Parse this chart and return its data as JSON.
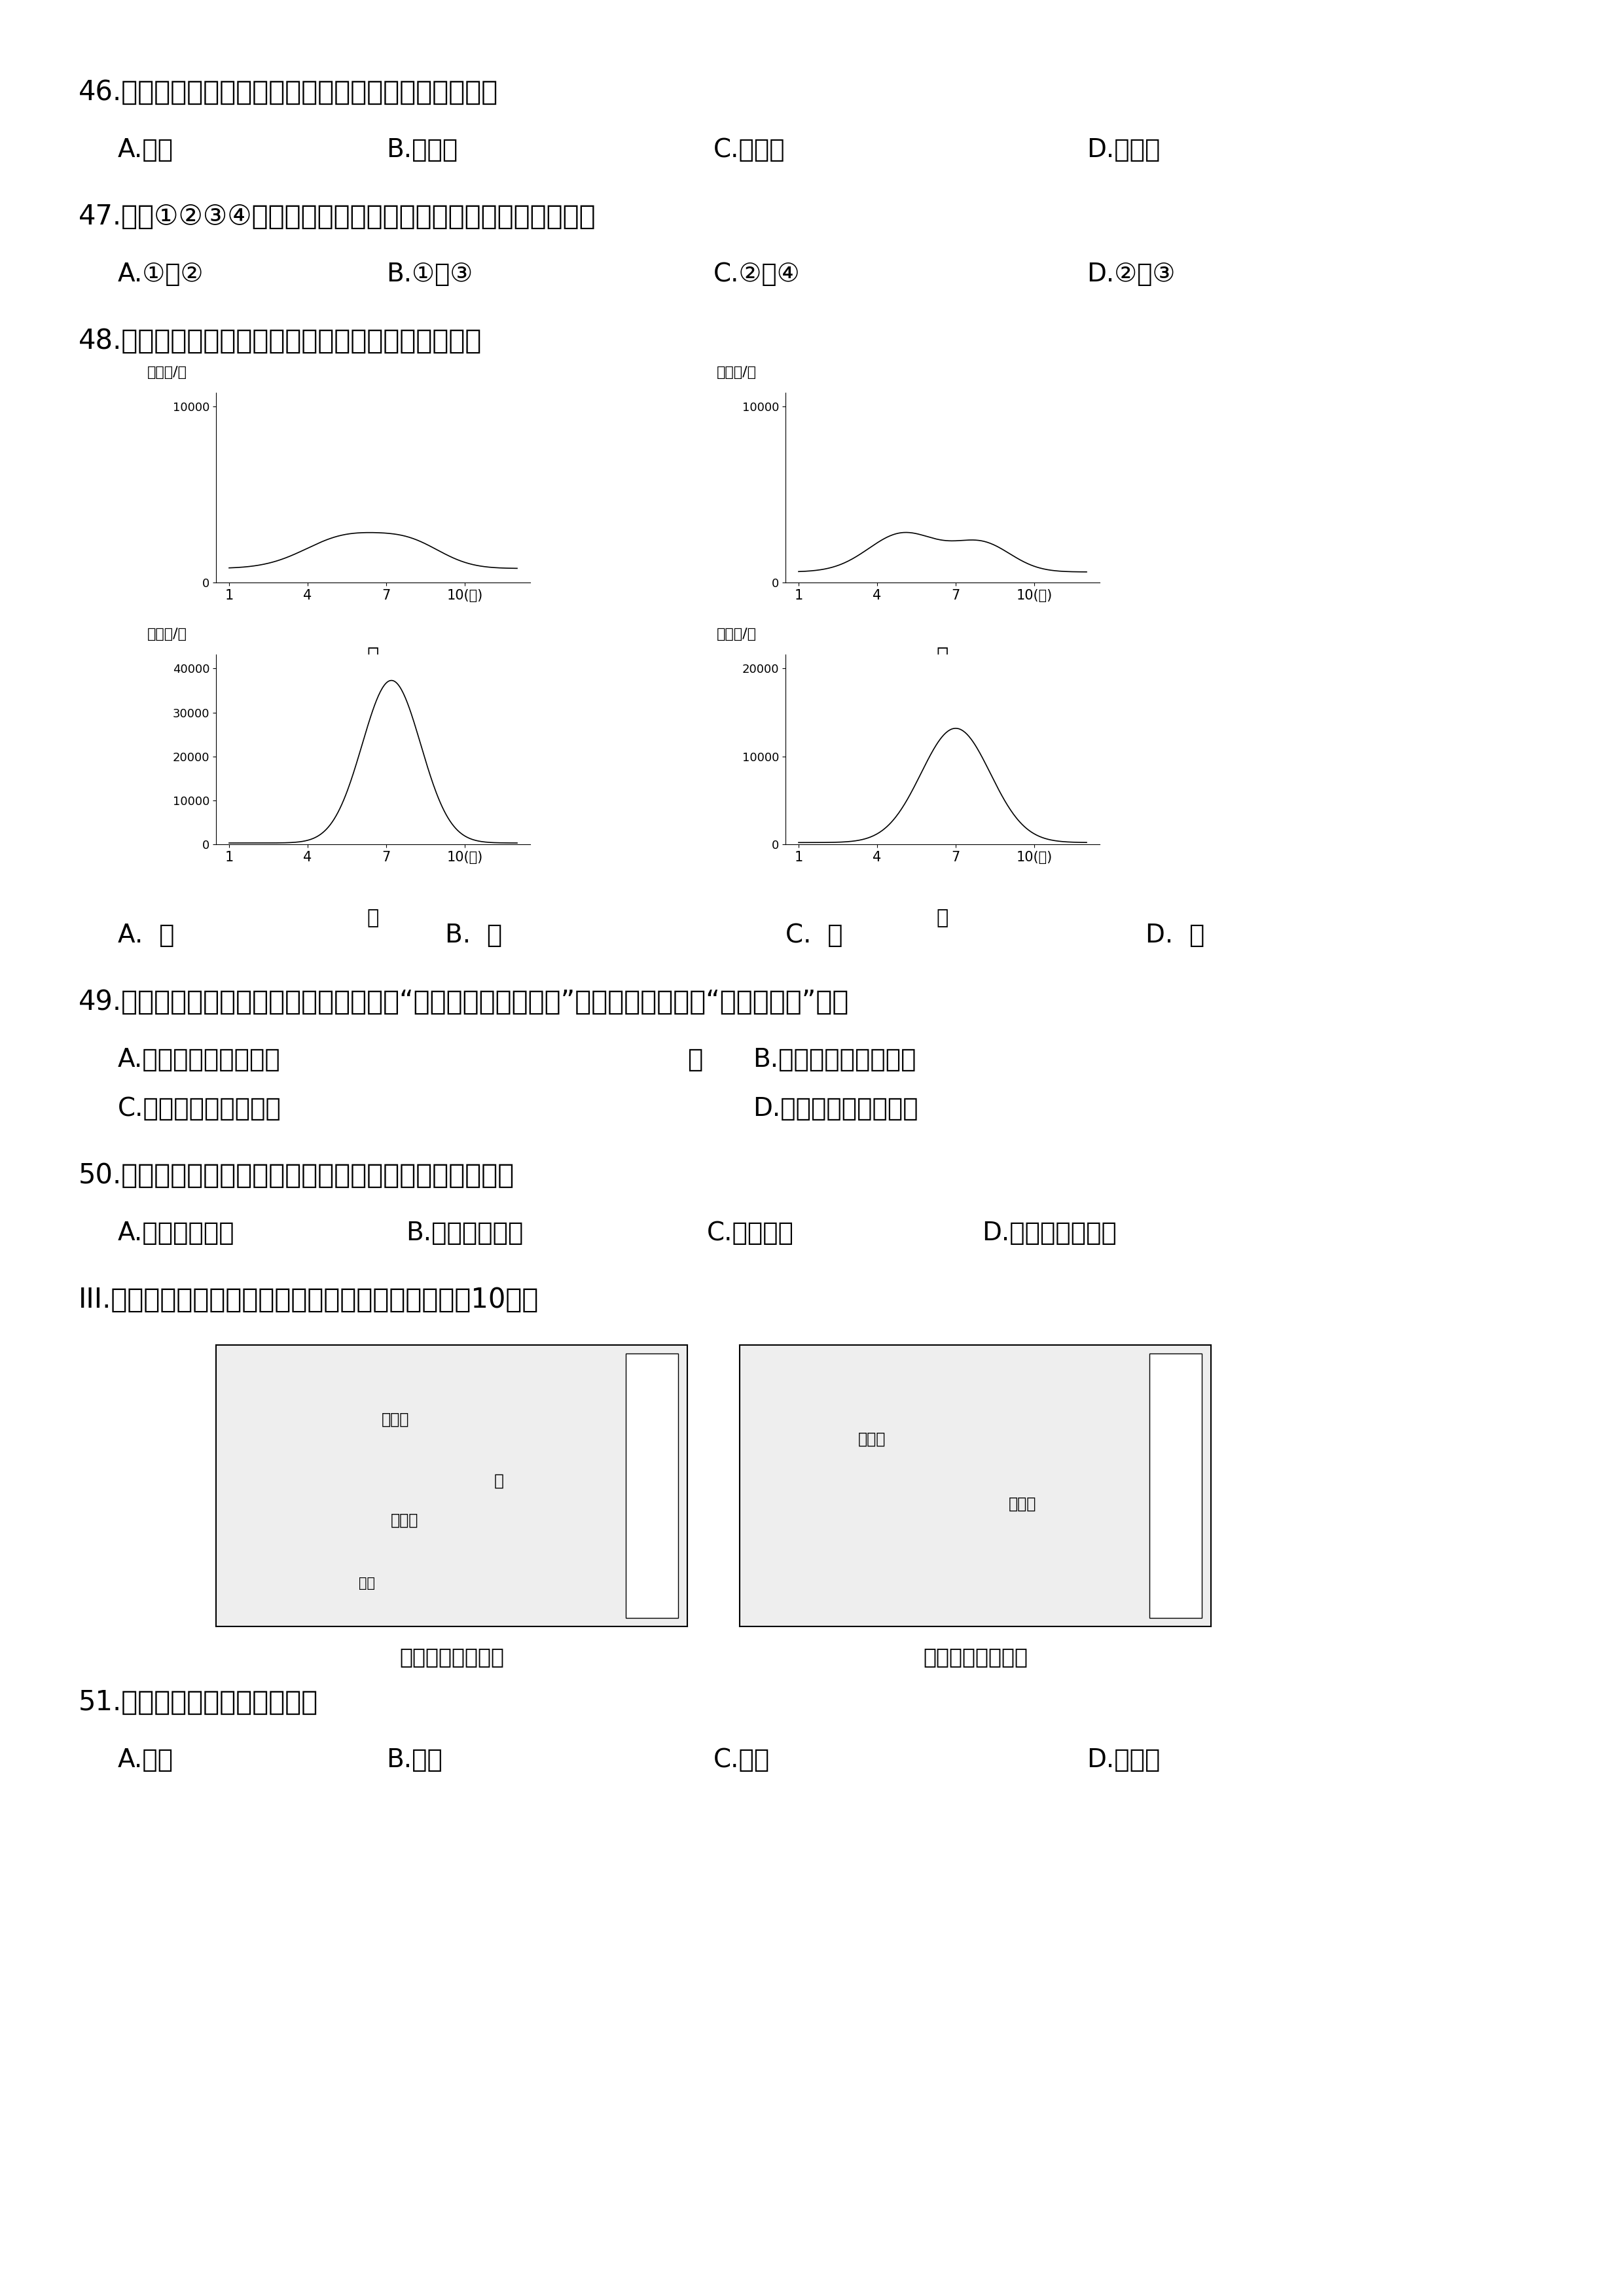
{
  "background_color": "#ffffff",
  "q46_text": "46.图中山脉是华北平原与黄土高原的分界线，其名称是",
  "q46_opts": [
    "A.秦岭",
    "B.武夷山",
    "C.长白山",
    "D.太行山"
  ],
  "q47_text": "47.图中①②③④表示黄河上、中、下游的分界线，其中正确的是",
  "q47_opts": [
    "A.①、②",
    "B.①、③",
    "C.②、④",
    "D.②、③"
  ],
  "q48_text": "48.下列四幅我国河流径流量图，能正确表示黄河的是",
  "q48_answer_opts": [
    "A.  甲",
    "B.  乙",
    "C.  丙",
    "D.  丁"
  ],
  "q49_text": "49.新中国成立之初，毛泽东同志就发出了“要把黄河的事情办好”的伟大号召，这里“黄河的事情”是指",
  "q49_optA": "A.水土流失和洪涝灾害",
  "q49_dot": "。",
  "q49_optB": "B.水土流失与环境污染",
  "q49_optC": "C.洪涝灾害和环境污染",
  "q49_optD": "D.水能开发与水土流失",
  "q50_text": "50.为了减少黄土高原的水土流失，下列措施中不合适的是",
  "q50_opts": [
    "A.缓坡修建梯田",
    "B.坡脚建挡土坝",
    "C.植树种草",
    "D.大面积开垦耕地"
  ],
  "section3": "III.读中国温度带与干湿区分布图，回答下列问题。（10分）",
  "q51_text": "51.亚热带和湿润区的北界线是",
  "q51_opts": [
    "A.长江",
    "B.淮河",
    "C.黄河",
    "D.黑龙江"
  ],
  "map1_label": "中国温度带分布图",
  "map2_label": "中国干湿区分布图",
  "font_q": 30,
  "font_opt": 28,
  "font_map_label": 24
}
